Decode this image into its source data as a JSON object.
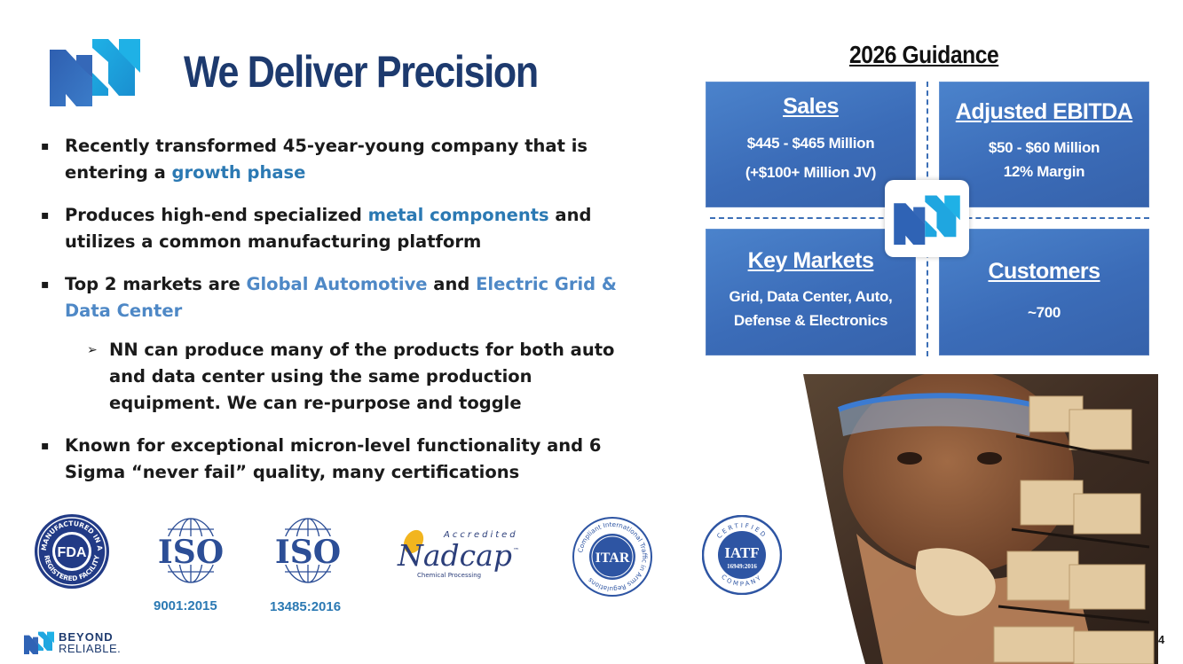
{
  "header": {
    "title": "We Deliver Precision"
  },
  "bullets": [
    {
      "parts": [
        {
          "text": "Recently transformed 45-year-young company that is entering a "
        },
        {
          "text": "growth phase",
          "style": "hl-dark"
        }
      ]
    },
    {
      "parts": [
        {
          "text": "Produces high-end specialized "
        },
        {
          "text": "metal components",
          "style": "hl-dark"
        },
        {
          "text": " and utilizes a common manufacturing platform"
        }
      ]
    },
    {
      "parts": [
        {
          "text": "Top 2 markets are "
        },
        {
          "text": "Global Automotive",
          "style": "hl-light"
        },
        {
          "text": " and "
        },
        {
          "text": "Electric Grid & Data Center",
          "style": "hl-light"
        }
      ]
    },
    {
      "parts": [
        {
          "text": "NN can produce many of the products for both auto and data center using the same production equipment. We can re-purpose and toggle"
        }
      ],
      "sub": true
    },
    {
      "parts": [
        {
          "text": "Known for exceptional micron-level functionality and 6 Sigma “never fail” quality, many certifications"
        }
      ]
    }
  ],
  "certifications": {
    "fda": {
      "top": "MANUFACTURED IN A",
      "middle": "FDA",
      "bottom": "REGISTERED FACILITY"
    },
    "iso1": {
      "mark": "ISO",
      "label": "9001:2015"
    },
    "iso2": {
      "mark": "ISO",
      "label": "13485:2016"
    },
    "nadcap": {
      "top": "Accredited",
      "mark": "Nadcap",
      "tm": "™",
      "bottom": "Chemical Processing"
    },
    "itar": {
      "ring": "Compliant International Traffic in Arms Regulations",
      "mark": "ITAR"
    },
    "iatf": {
      "top": "CERTIFIED",
      "mark": "IATF",
      "code": "16949:2016",
      "bottom": "COMPANY"
    }
  },
  "guidance": {
    "title": "2026 Guidance",
    "sales": {
      "heading": "Sales",
      "line1": "$445 - $465 Million",
      "line2": "(+$100+ Million JV)"
    },
    "ebitda": {
      "heading": "Adjusted EBITDA",
      "line1": "$50 - $60 Million",
      "line2": "12% Margin"
    },
    "markets": {
      "heading": "Key Markets",
      "line1": "Grid, Data Center, Auto,",
      "line2": "Defense & Electronics"
    },
    "customers": {
      "heading": "Customers",
      "line1": "~700"
    }
  },
  "footer": {
    "brand_line1": "BEYOND",
    "brand_line2": "RELIABLE."
  },
  "page_number": "4",
  "colors": {
    "brand_navy": "#1d3a6e",
    "brand_blue": "#2b79b3",
    "highlight_light_blue": "#4e88c6",
    "guidance_box_blue": "#3b6cb8",
    "logo_cyan": "#1aa6e0"
  },
  "icons": [
    "nn-logo",
    "fda-seal",
    "iso-globe",
    "nadcap-mark",
    "itar-seal",
    "iatf-seal"
  ]
}
